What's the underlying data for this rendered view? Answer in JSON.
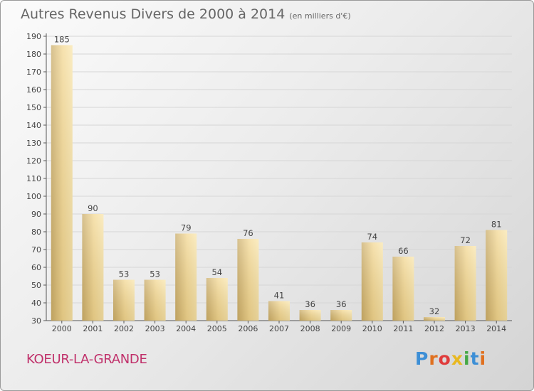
{
  "header": {
    "title": "Autres Revenus Divers de 2000 à 2014",
    "unit": "(en milliers d'€)"
  },
  "footer": {
    "commune": "KOEUR-LA-GRANDE",
    "logo_text": "Proxiti",
    "logo_colors": [
      "#3d8fd6",
      "#e0701f",
      "#e03c3c",
      "#e8b820",
      "#45a845",
      "#3d8fd6",
      "#e0701f"
    ]
  },
  "colors": {
    "bar_light": "#f9e1a1",
    "bar_dark": "#c9ac6a",
    "grid": "#d6d6d6",
    "commune": "#c0306a"
  },
  "chart_data": {
    "type": "bar",
    "title": "Autres Revenus Divers de 2000 à 2014",
    "subtitle": "(en milliers d'€)",
    "xlabel": "",
    "ylabel": "",
    "categories": [
      "2000",
      "2001",
      "2002",
      "2003",
      "2004",
      "2005",
      "2006",
      "2007",
      "2008",
      "2009",
      "2010",
      "2011",
      "2012",
      "2013",
      "2014"
    ],
    "values": [
      185,
      90,
      53,
      53,
      79,
      54,
      76,
      41,
      36,
      36,
      74,
      66,
      32,
      72,
      81
    ],
    "ylim": [
      30,
      190
    ],
    "yticks": [
      30,
      40,
      50,
      60,
      70,
      80,
      90,
      100,
      110,
      120,
      130,
      140,
      150,
      160,
      170,
      180,
      190
    ],
    "grid": true,
    "data_labels": true
  }
}
